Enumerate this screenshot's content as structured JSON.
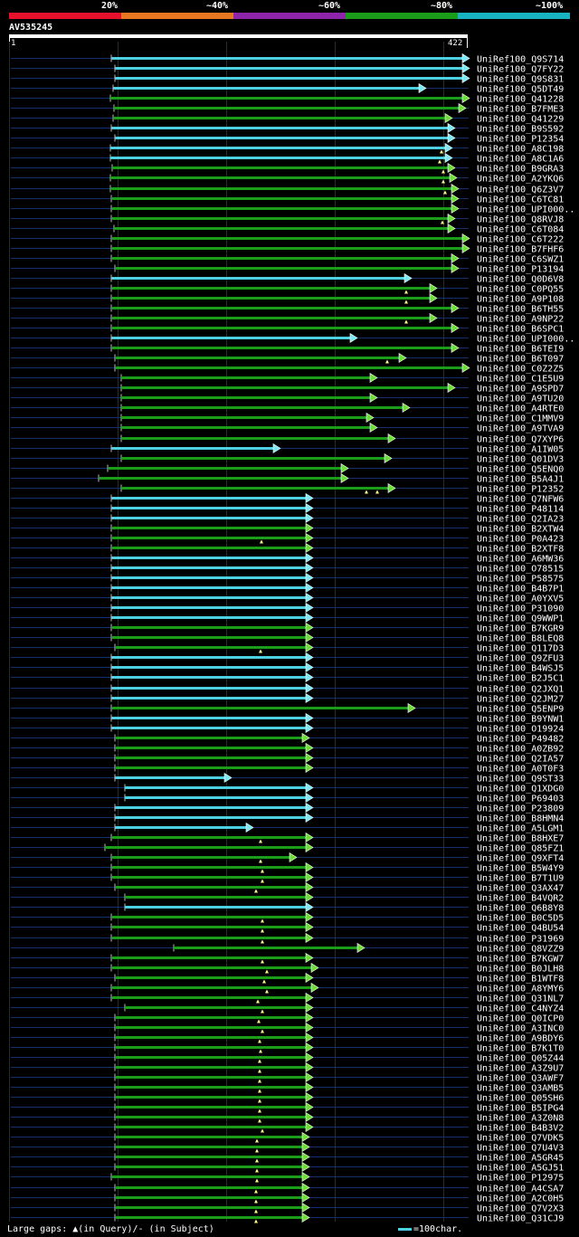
{
  "legend": {
    "labels": [
      "20%",
      "~40%",
      "~60%",
      "~80%",
      "~100%"
    ],
    "colors": [
      "#e8112d",
      "#e87722",
      "#8e24aa",
      "#1a9e1a",
      "#17b3c0"
    ]
  },
  "query": {
    "name": "AV535245",
    "start": "1",
    "end": "422"
  },
  "footer": {
    "gaps_text": "Large gaps: ▲(in Query)/- (in Subject)",
    "scale_text": "=100char."
  },
  "hits": [
    {
      "name": "UniRef100_Q9S714",
      "s": 123,
      "e": 513,
      "c": "c",
      "gaps": []
    },
    {
      "name": "UniRef100_Q7FY22",
      "s": 127,
      "e": 513,
      "c": "c",
      "gaps": []
    },
    {
      "name": "UniRef100_Q9S831",
      "s": 127,
      "e": 513,
      "c": "c",
      "gaps": []
    },
    {
      "name": "UniRef100_Q5DT49",
      "s": 125,
      "e": 465,
      "c": "c",
      "gaps": []
    },
    {
      "name": "UniRef100_Q41228",
      "s": 122,
      "e": 513,
      "c": "g",
      "gaps": []
    },
    {
      "name": "UniRef100_B7FME3",
      "s": 126,
      "e": 509,
      "c": "g",
      "gaps": []
    },
    {
      "name": "UniRef100_Q41229",
      "s": 125,
      "e": 494,
      "c": "g",
      "gaps": []
    },
    {
      "name": "UniRef100_B9S592",
      "s": 123,
      "e": 497,
      "c": "c",
      "gaps": []
    },
    {
      "name": "UniRef100_P12354",
      "s": 127,
      "e": 497,
      "c": "c",
      "gaps": []
    },
    {
      "name": "UniRef100_A8C198",
      "s": 122,
      "e": 494,
      "c": "c",
      "gaps": [
        488
      ]
    },
    {
      "name": "UniRef100_A8C1A6",
      "s": 122,
      "e": 494,
      "c": "c",
      "gaps": [
        486
      ]
    },
    {
      "name": "UniRef100_B9GRA3",
      "s": 124,
      "e": 497,
      "c": "g",
      "gaps": [
        490
      ]
    },
    {
      "name": "UniRef100_A2YKQ6",
      "s": 122,
      "e": 499,
      "c": "g",
      "gaps": [
        490
      ]
    },
    {
      "name": "UniRef100_Q6Z3V7",
      "s": 122,
      "e": 501,
      "c": "g",
      "gaps": [
        492
      ]
    },
    {
      "name": "UniRef100_C6TC81",
      "s": 123,
      "e": 501,
      "c": "g",
      "gaps": []
    },
    {
      "name": "UniRef100_UPI000..",
      "s": 123,
      "e": 501,
      "c": "g",
      "gaps": []
    },
    {
      "name": "UniRef100_Q8RVJ8",
      "s": 123,
      "e": 497,
      "c": "g",
      "gaps": [
        489
      ]
    },
    {
      "name": "UniRef100_C6T084",
      "s": 126,
      "e": 497,
      "c": "g",
      "gaps": []
    },
    {
      "name": "UniRef100_C6T222",
      "s": 123,
      "e": 513,
      "c": "g",
      "gaps": []
    },
    {
      "name": "UniRef100_B7FHF6",
      "s": 123,
      "e": 513,
      "c": "g",
      "gaps": []
    },
    {
      "name": "UniRef100_C6SWZ1",
      "s": 123,
      "e": 501,
      "c": "g",
      "gaps": []
    },
    {
      "name": "UniRef100_P13194",
      "s": 127,
      "e": 501,
      "c": "g",
      "gaps": []
    },
    {
      "name": "UniRef100_Q0D6V8",
      "s": 123,
      "e": 449,
      "c": "c",
      "gaps": []
    },
    {
      "name": "UniRef100_C0PQ55",
      "s": 123,
      "e": 477,
      "c": "g",
      "gaps": [
        449
      ]
    },
    {
      "name": "UniRef100_A9P108",
      "s": 123,
      "e": 477,
      "c": "g",
      "gaps": [
        449
      ]
    },
    {
      "name": "UniRef100_B6TH55",
      "s": 123,
      "e": 501,
      "c": "g",
      "gaps": []
    },
    {
      "name": "UniRef100_A9NP22",
      "s": 123,
      "e": 477,
      "c": "g",
      "gaps": [
        449
      ]
    },
    {
      "name": "UniRef100_B6SPC1",
      "s": 123,
      "e": 501,
      "c": "g",
      "gaps": []
    },
    {
      "name": "UniRef100_UPI000..",
      "s": 123,
      "e": 389,
      "c": "c",
      "gaps": []
    },
    {
      "name": "UniRef100_B6TEI9",
      "s": 123,
      "e": 501,
      "c": "g",
      "gaps": []
    },
    {
      "name": "UniRef100_B6T097",
      "s": 127,
      "e": 443,
      "c": "g",
      "gaps": [
        428
      ]
    },
    {
      "name": "UniRef100_C0Z2Z5",
      "s": 127,
      "e": 513,
      "c": "g",
      "gaps": []
    },
    {
      "name": "UniRef100_C1E5U9",
      "s": 134,
      "e": 411,
      "c": "g",
      "gaps": []
    },
    {
      "name": "UniRef100_A9SPD7",
      "s": 134,
      "e": 497,
      "c": "g",
      "gaps": []
    },
    {
      "name": "UniRef100_A9TU20",
      "s": 134,
      "e": 411,
      "c": "g",
      "gaps": []
    },
    {
      "name": "UniRef100_A4RTE0",
      "s": 134,
      "e": 447,
      "c": "g",
      "gaps": []
    },
    {
      "name": "UniRef100_C1MMV9",
      "s": 134,
      "e": 407,
      "c": "g",
      "gaps": []
    },
    {
      "name": "UniRef100_A9TVA9",
      "s": 134,
      "e": 411,
      "c": "g",
      "gaps": []
    },
    {
      "name": "UniRef100_Q7XYP6",
      "s": 134,
      "e": 431,
      "c": "g",
      "gaps": []
    },
    {
      "name": "UniRef100_A1IW05",
      "s": 123,
      "e": 304,
      "c": "c",
      "gaps": []
    },
    {
      "name": "UniRef100_Q01DV3",
      "s": 134,
      "e": 427,
      "c": "g",
      "gaps": []
    },
    {
      "name": "UniRef100_Q5ENQ0",
      "s": 119,
      "e": 379,
      "c": "g",
      "gaps": []
    },
    {
      "name": "UniRef100_B5A4J1",
      "s": 109,
      "e": 379,
      "c": "g",
      "gaps": []
    },
    {
      "name": "UniRef100_P12352",
      "s": 134,
      "e": 431,
      "c": "g",
      "gaps": [
        405,
        417
      ]
    },
    {
      "name": "UniRef100_Q7NFW6",
      "s": 123,
      "e": 340,
      "c": "c",
      "gaps": []
    },
    {
      "name": "UniRef100_P48114",
      "s": 123,
      "e": 340,
      "c": "c",
      "gaps": []
    },
    {
      "name": "UniRef100_Q2IA23",
      "s": 123,
      "e": 340,
      "c": "c",
      "gaps": []
    },
    {
      "name": "UniRef100_B2XTW4",
      "s": 123,
      "e": 340,
      "c": "g",
      "gaps": []
    },
    {
      "name": "UniRef100_P0A423",
      "s": 123,
      "e": 340,
      "c": "g",
      "gaps": [
        289
      ]
    },
    {
      "name": "UniRef100_B2XTF8",
      "s": 123,
      "e": 340,
      "c": "g",
      "gaps": []
    },
    {
      "name": "UniRef100_A6MW36",
      "s": 123,
      "e": 340,
      "c": "c",
      "gaps": []
    },
    {
      "name": "UniRef100_O78515",
      "s": 123,
      "e": 340,
      "c": "c",
      "gaps": []
    },
    {
      "name": "UniRef100_P58575",
      "s": 123,
      "e": 340,
      "c": "c",
      "gaps": []
    },
    {
      "name": "UniRef100_B4B7P1",
      "s": 123,
      "e": 340,
      "c": "c",
      "gaps": []
    },
    {
      "name": "UniRef100_A0YXV5",
      "s": 123,
      "e": 340,
      "c": "c",
      "gaps": []
    },
    {
      "name": "UniRef100_P31090",
      "s": 123,
      "e": 340,
      "c": "c",
      "gaps": []
    },
    {
      "name": "UniRef100_Q9WWP1",
      "s": 123,
      "e": 340,
      "c": "c",
      "gaps": []
    },
    {
      "name": "UniRef100_B7KGR9",
      "s": 123,
      "e": 340,
      "c": "g",
      "gaps": []
    },
    {
      "name": "UniRef100_B8LEQ8",
      "s": 123,
      "e": 340,
      "c": "g",
      "gaps": []
    },
    {
      "name": "UniRef100_Q117D3",
      "s": 127,
      "e": 340,
      "c": "g",
      "gaps": [
        288
      ]
    },
    {
      "name": "UniRef100_Q9ZFU3",
      "s": 123,
      "e": 340,
      "c": "c",
      "gaps": []
    },
    {
      "name": "UniRef100_B4WSJ5",
      "s": 123,
      "e": 340,
      "c": "c",
      "gaps": []
    },
    {
      "name": "UniRef100_B2J5C1",
      "s": 123,
      "e": 340,
      "c": "c",
      "gaps": []
    },
    {
      "name": "UniRef100_Q2JXQ1",
      "s": 123,
      "e": 340,
      "c": "c",
      "gaps": []
    },
    {
      "name": "UniRef100_Q2JM27",
      "s": 123,
      "e": 340,
      "c": "c",
      "gaps": []
    },
    {
      "name": "UniRef100_Q5ENP9",
      "s": 123,
      "e": 453,
      "c": "g",
      "gaps": []
    },
    {
      "name": "UniRef100_B9YNW1",
      "s": 123,
      "e": 340,
      "c": "c",
      "gaps": []
    },
    {
      "name": "UniRef100_O19924",
      "s": 123,
      "e": 340,
      "c": "c",
      "gaps": []
    },
    {
      "name": "UniRef100_P49482",
      "s": 127,
      "e": 336,
      "c": "g",
      "gaps": []
    },
    {
      "name": "UniRef100_A0ZB92",
      "s": 127,
      "e": 340,
      "c": "g",
      "gaps": []
    },
    {
      "name": "UniRef100_Q2IA57",
      "s": 127,
      "e": 340,
      "c": "g",
      "gaps": []
    },
    {
      "name": "UniRef100_A0T0F3",
      "s": 127,
      "e": 340,
      "c": "g",
      "gaps": []
    },
    {
      "name": "UniRef100_Q9ST33",
      "s": 127,
      "e": 250,
      "c": "c",
      "gaps": []
    },
    {
      "name": "UniRef100_Q1XDG0",
      "s": 138,
      "e": 340,
      "c": "c",
      "gaps": []
    },
    {
      "name": "UniRef100_P69403",
      "s": 138,
      "e": 340,
      "c": "c",
      "gaps": []
    },
    {
      "name": "UniRef100_P23809",
      "s": 127,
      "e": 340,
      "c": "c",
      "gaps": []
    },
    {
      "name": "UniRef100_B8HMN4",
      "s": 127,
      "e": 340,
      "c": "c",
      "gaps": []
    },
    {
      "name": "UniRef100_A5LGM1",
      "s": 127,
      "e": 274,
      "c": "c",
      "gaps": []
    },
    {
      "name": "UniRef100_B8HXE7",
      "s": 123,
      "e": 340,
      "c": "g",
      "gaps": [
        288
      ]
    },
    {
      "name": "UniRef100_Q85FZ1",
      "s": 116,
      "e": 340,
      "c": "g",
      "gaps": []
    },
    {
      "name": "UniRef100_Q9XFT4",
      "s": 123,
      "e": 322,
      "c": "g",
      "gaps": [
        288
      ]
    },
    {
      "name": "UniRef100_B5W4Y9",
      "s": 123,
      "e": 340,
      "c": "g",
      "gaps": [
        290
      ]
    },
    {
      "name": "UniRef100_B7T1U9",
      "s": 123,
      "e": 340,
      "c": "g",
      "gaps": [
        290
      ]
    },
    {
      "name": "UniRef100_Q3AX47",
      "s": 127,
      "e": 340,
      "c": "g",
      "gaps": [
        283
      ]
    },
    {
      "name": "UniRef100_B4VQR2",
      "s": 138,
      "e": 340,
      "c": "g",
      "gaps": []
    },
    {
      "name": "UniRef100_Q6B8Y8",
      "s": 138,
      "e": 340,
      "c": "c",
      "gaps": []
    },
    {
      "name": "UniRef100_B0C5D5",
      "s": 123,
      "e": 340,
      "c": "g",
      "gaps": [
        290
      ]
    },
    {
      "name": "UniRef100_Q4BU54",
      "s": 123,
      "e": 340,
      "c": "g",
      "gaps": [
        290
      ]
    },
    {
      "name": "UniRef100_P31969",
      "s": 123,
      "e": 340,
      "c": "g",
      "gaps": [
        290
      ]
    },
    {
      "name": "UniRef100_Q8VZZ9",
      "s": 192,
      "e": 397,
      "c": "g",
      "gaps": []
    },
    {
      "name": "UniRef100_B7KGW7",
      "s": 123,
      "e": 340,
      "c": "g",
      "gaps": [
        290
      ]
    },
    {
      "name": "UniRef100_B0JLH8",
      "s": 123,
      "e": 346,
      "c": "g",
      "gaps": [
        295
      ]
    },
    {
      "name": "UniRef100_B1WTF8",
      "s": 127,
      "e": 340,
      "c": "g",
      "gaps": [
        292
      ]
    },
    {
      "name": "UniRef100_A8YMY6",
      "s": 123,
      "e": 346,
      "c": "g",
      "gaps": [
        295
      ]
    },
    {
      "name": "UniRef100_Q31NL7",
      "s": 123,
      "e": 340,
      "c": "g",
      "gaps": [
        285
      ]
    },
    {
      "name": "UniRef100_C4NYZ4",
      "s": 138,
      "e": 340,
      "c": "g",
      "gaps": [
        290
      ]
    },
    {
      "name": "UniRef100_Q0ICP0",
      "s": 127,
      "e": 340,
      "c": "g",
      "gaps": [
        286
      ]
    },
    {
      "name": "UniRef100_A3INC0",
      "s": 127,
      "e": 340,
      "c": "g",
      "gaps": [
        290
      ]
    },
    {
      "name": "UniRef100_A9BDY6",
      "s": 127,
      "e": 340,
      "c": "g",
      "gaps": [
        287
      ]
    },
    {
      "name": "UniRef100_B7K1T0",
      "s": 127,
      "e": 340,
      "c": "g",
      "gaps": [
        288
      ]
    },
    {
      "name": "UniRef100_Q05Z44",
      "s": 127,
      "e": 340,
      "c": "g",
      "gaps": [
        287
      ]
    },
    {
      "name": "UniRef100_A3Z9U7",
      "s": 127,
      "e": 340,
      "c": "g",
      "gaps": [
        287
      ]
    },
    {
      "name": "UniRef100_Q3AWF7",
      "s": 127,
      "e": 340,
      "c": "g",
      "gaps": [
        287
      ]
    },
    {
      "name": "UniRef100_Q3AMB5",
      "s": 127,
      "e": 340,
      "c": "g",
      "gaps": [
        287
      ]
    },
    {
      "name": "UniRef100_Q05SH6",
      "s": 127,
      "e": 340,
      "c": "g",
      "gaps": [
        287
      ]
    },
    {
      "name": "UniRef100_B5IPG4",
      "s": 127,
      "e": 340,
      "c": "g",
      "gaps": [
        287
      ]
    },
    {
      "name": "UniRef100_A3Z0N8",
      "s": 127,
      "e": 340,
      "c": "g",
      "gaps": [
        287
      ]
    },
    {
      "name": "UniRef100_B4B3V2",
      "s": 127,
      "e": 340,
      "c": "g",
      "gaps": [
        290
      ]
    },
    {
      "name": "UniRef100_Q7VDK5",
      "s": 127,
      "e": 336,
      "c": "g",
      "gaps": [
        284
      ]
    },
    {
      "name": "UniRef100_Q7U4V3",
      "s": 127,
      "e": 336,
      "c": "g",
      "gaps": [
        284
      ]
    },
    {
      "name": "UniRef100_A5GR45",
      "s": 127,
      "e": 336,
      "c": "g",
      "gaps": [
        284
      ]
    },
    {
      "name": "UniRef100_A5GJ51",
      "s": 127,
      "e": 336,
      "c": "g",
      "gaps": [
        284
      ]
    },
    {
      "name": "UniRef100_P12975",
      "s": 123,
      "e": 336,
      "c": "g",
      "gaps": [
        284
      ]
    },
    {
      "name": "UniRef100_A4CSA7",
      "s": 127,
      "e": 336,
      "c": "g",
      "gaps": [
        283
      ]
    },
    {
      "name": "UniRef100_A2C0H5",
      "s": 127,
      "e": 336,
      "c": "g",
      "gaps": [
        283
      ]
    },
    {
      "name": "UniRef100_Q7V2X3",
      "s": 127,
      "e": 336,
      "c": "g",
      "gaps": [
        283
      ]
    },
    {
      "name": "UniRef100_Q31CJ9",
      "s": 127,
      "e": 336,
      "c": "g",
      "gaps": [
        283
      ]
    }
  ]
}
